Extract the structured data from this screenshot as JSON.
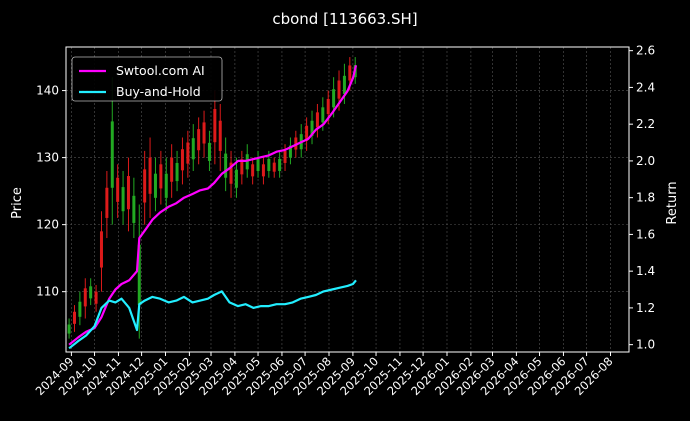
{
  "chart_data": {
    "type": "line",
    "title": "cbond [113663.SH]",
    "ylabel_left": "Price",
    "ylabel_right": "Return",
    "ylim_left": [
      101,
      146.5
    ],
    "ylim_right": [
      0.96,
      2.62
    ],
    "xlim": [
      "2024-08-25",
      "2026-08-25"
    ],
    "grid": true,
    "legend_position": "top-left",
    "x_ticks": [
      "2024-09",
      "2024-10",
      "2024-11",
      "2024-12",
      "2025-01",
      "2025-02",
      "2025-03",
      "2025-04",
      "2025-05",
      "2025-06",
      "2025-07",
      "2025-08",
      "2025-09",
      "2025-10",
      "2025-11",
      "2025-12",
      "2026-01",
      "2026-02",
      "2026-03",
      "2026-04",
      "2026-05",
      "2026-06",
      "2026-07",
      "2026-08"
    ],
    "y_ticks_left": [
      110,
      120,
      130,
      140
    ],
    "y_ticks_right": [
      1.0,
      1.2,
      1.4,
      1.6,
      1.8,
      2.0,
      2.2,
      2.4,
      2.6
    ],
    "series": [
      {
        "name": "Swtool.com AI",
        "color": "#ff00ff",
        "axis": "right",
        "x": [
          "2024-08-29",
          "2024-09-10",
          "2024-09-20",
          "2024-10-01",
          "2024-10-10",
          "2024-10-20",
          "2024-10-28",
          "2024-11-05",
          "2024-11-15",
          "2024-11-25",
          "2024-11-28",
          "2024-12-05",
          "2024-12-15",
          "2024-12-25",
          "2025-01-05",
          "2025-01-15",
          "2025-01-25",
          "2025-02-05",
          "2025-02-15",
          "2025-02-25",
          "2025-03-05",
          "2025-03-15",
          "2025-03-25",
          "2025-04-05",
          "2025-04-15",
          "2025-04-25",
          "2025-05-05",
          "2025-05-15",
          "2025-05-25",
          "2025-06-05",
          "2025-06-15",
          "2025-06-25",
          "2025-07-05",
          "2025-07-15",
          "2025-07-25",
          "2025-08-05",
          "2025-08-15",
          "2025-08-25",
          "2025-09-01",
          "2025-09-05"
        ],
        "y": [
          1.0,
          1.04,
          1.07,
          1.09,
          1.15,
          1.25,
          1.3,
          1.33,
          1.35,
          1.4,
          1.58,
          1.62,
          1.68,
          1.72,
          1.75,
          1.77,
          1.8,
          1.82,
          1.84,
          1.85,
          1.88,
          1.93,
          1.96,
          2.0,
          2.0,
          2.01,
          2.02,
          2.03,
          2.05,
          2.06,
          2.08,
          2.1,
          2.12,
          2.17,
          2.2,
          2.26,
          2.32,
          2.38,
          2.45,
          2.52
        ]
      },
      {
        "name": "Buy-and-Hold",
        "color": "#22eeff",
        "axis": "right",
        "x": [
          "2024-08-29",
          "2024-09-10",
          "2024-09-20",
          "2024-10-01",
          "2024-10-10",
          "2024-10-20",
          "2024-10-28",
          "2024-11-05",
          "2024-11-15",
          "2024-11-25",
          "2024-11-28",
          "2024-12-05",
          "2024-12-15",
          "2024-12-25",
          "2025-01-05",
          "2025-01-15",
          "2025-01-25",
          "2025-02-05",
          "2025-02-15",
          "2025-02-25",
          "2025-03-05",
          "2025-03-15",
          "2025-03-25",
          "2025-04-05",
          "2025-04-15",
          "2025-04-25",
          "2025-05-05",
          "2025-05-15",
          "2025-05-25",
          "2025-06-05",
          "2025-06-15",
          "2025-06-25",
          "2025-07-05",
          "2025-07-15",
          "2025-07-25",
          "2025-08-05",
          "2025-08-15",
          "2025-08-25",
          "2025-09-01",
          "2025-09-05"
        ],
        "y": [
          0.98,
          1.02,
          1.05,
          1.1,
          1.2,
          1.24,
          1.23,
          1.25,
          1.2,
          1.08,
          1.22,
          1.24,
          1.26,
          1.25,
          1.23,
          1.24,
          1.26,
          1.23,
          1.24,
          1.25,
          1.27,
          1.29,
          1.23,
          1.21,
          1.22,
          1.2,
          1.21,
          1.21,
          1.22,
          1.22,
          1.23,
          1.25,
          1.26,
          1.27,
          1.29,
          1.3,
          1.31,
          1.32,
          1.33,
          1.35
        ]
      }
    ],
    "price_candles": [
      {
        "date": "2024-08-29",
        "low": 103,
        "high": 106,
        "up": true
      },
      {
        "date": "2024-09-05",
        "low": 104,
        "high": 108,
        "up": false
      },
      {
        "date": "2024-09-12",
        "low": 105,
        "high": 110,
        "up": true
      },
      {
        "date": "2024-09-19",
        "low": 106,
        "high": 112,
        "up": false
      },
      {
        "date": "2024-09-26",
        "low": 108,
        "high": 112,
        "up": true
      },
      {
        "date": "2024-10-03",
        "low": 107,
        "high": 111,
        "up": false
      },
      {
        "date": "2024-10-10",
        "low": 110,
        "high": 122,
        "up": false
      },
      {
        "date": "2024-10-17",
        "low": 118,
        "high": 128,
        "up": false
      },
      {
        "date": "2024-10-24",
        "low": 120,
        "high": 142,
        "up": true
      },
      {
        "date": "2024-10-31",
        "low": 121,
        "high": 129,
        "up": false
      },
      {
        "date": "2024-11-07",
        "low": 120,
        "high": 128,
        "up": true
      },
      {
        "date": "2024-11-14",
        "low": 119,
        "high": 130,
        "up": false
      },
      {
        "date": "2024-11-21",
        "low": 118,
        "high": 127,
        "up": true
      },
      {
        "date": "2024-11-28",
        "low": 103,
        "high": 123,
        "up": true
      },
      {
        "date": "2024-12-05",
        "low": 120,
        "high": 131,
        "up": false
      },
      {
        "date": "2024-12-12",
        "low": 121,
        "high": 133,
        "up": false
      },
      {
        "date": "2024-12-19",
        "low": 122,
        "high": 130,
        "up": true
      },
      {
        "date": "2024-12-26",
        "low": 123,
        "high": 131,
        "up": false
      },
      {
        "date": "2025-01-02",
        "low": 122,
        "high": 130,
        "up": true
      },
      {
        "date": "2025-01-09",
        "low": 124,
        "high": 132,
        "up": false
      },
      {
        "date": "2025-01-16",
        "low": 125,
        "high": 131,
        "up": true
      },
      {
        "date": "2025-01-23",
        "low": 126,
        "high": 133,
        "up": false
      },
      {
        "date": "2025-01-30",
        "low": 127,
        "high": 134,
        "up": false
      },
      {
        "date": "2025-02-06",
        "low": 128,
        "high": 135,
        "up": true
      },
      {
        "date": "2025-02-13",
        "low": 129,
        "high": 136,
        "up": false
      },
      {
        "date": "2025-02-20",
        "low": 130,
        "high": 137,
        "up": false
      },
      {
        "date": "2025-02-27",
        "low": 128,
        "high": 134,
        "up": true
      },
      {
        "date": "2025-03-06",
        "low": 129,
        "high": 140,
        "up": false
      },
      {
        "date": "2025-03-13",
        "low": 128,
        "high": 138,
        "up": false
      },
      {
        "date": "2025-03-20",
        "low": 125,
        "high": 133,
        "up": true
      },
      {
        "date": "2025-03-27",
        "low": 124,
        "high": 131,
        "up": false
      },
      {
        "date": "2025-04-03",
        "low": 124,
        "high": 130,
        "up": true
      },
      {
        "date": "2025-04-10",
        "low": 126,
        "high": 131,
        "up": false
      },
      {
        "date": "2025-04-17",
        "low": 127,
        "high": 132,
        "up": true
      },
      {
        "date": "2025-04-24",
        "low": 126,
        "high": 130,
        "up": false
      },
      {
        "date": "2025-05-01",
        "low": 127,
        "high": 131,
        "up": true
      },
      {
        "date": "2025-05-08",
        "low": 126,
        "high": 130,
        "up": false
      },
      {
        "date": "2025-05-15",
        "low": 127,
        "high": 131,
        "up": true
      },
      {
        "date": "2025-05-22",
        "low": 127,
        "high": 130,
        "up": false
      },
      {
        "date": "2025-05-29",
        "low": 127,
        "high": 131,
        "up": true
      },
      {
        "date": "2025-06-05",
        "low": 128,
        "high": 132,
        "up": false
      },
      {
        "date": "2025-06-12",
        "low": 129,
        "high": 133,
        "up": true
      },
      {
        "date": "2025-06-19",
        "low": 130,
        "high": 134,
        "up": false
      },
      {
        "date": "2025-06-26",
        "low": 130,
        "high": 135,
        "up": true
      },
      {
        "date": "2025-07-03",
        "low": 131,
        "high": 136,
        "up": false
      },
      {
        "date": "2025-07-10",
        "low": 132,
        "high": 137,
        "up": true
      },
      {
        "date": "2025-07-17",
        "low": 133,
        "high": 138,
        "up": false
      },
      {
        "date": "2025-07-24",
        "low": 134,
        "high": 139,
        "up": true
      },
      {
        "date": "2025-07-31",
        "low": 135,
        "high": 140,
        "up": false
      },
      {
        "date": "2025-08-07",
        "low": 136,
        "high": 142,
        "up": true
      },
      {
        "date": "2025-08-14",
        "low": 137,
        "high": 143,
        "up": false
      },
      {
        "date": "2025-08-21",
        "low": 138,
        "high": 144,
        "up": true
      },
      {
        "date": "2025-08-28",
        "low": 140,
        "high": 145,
        "up": false
      },
      {
        "date": "2025-09-04",
        "low": 141,
        "high": 145,
        "up": true
      }
    ],
    "candle_colors": {
      "up": "#22aa22",
      "down": "#dd1a1a"
    }
  }
}
